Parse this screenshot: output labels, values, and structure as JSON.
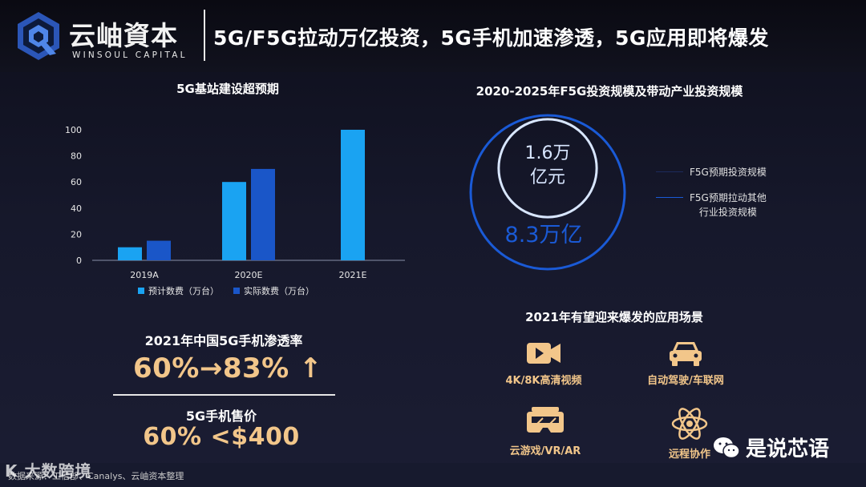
{
  "header": {
    "logo_cn": "云岫資本",
    "logo_en": "WINSOUL CAPITAL",
    "title": "5G/F5G拉动万亿投资，5G手机加速渗透，5G应用即将爆发"
  },
  "left_chart_title": "5G基站建设超预期",
  "chart_data": [
    {
      "type": "bar",
      "title": "5G基站建设超预期",
      "categories": [
        "2019A",
        "2020E",
        "2021E"
      ],
      "series": [
        {
          "name": "预计数费（万台）",
          "values": [
            10,
            60,
            100
          ],
          "color": "#1aa3f2"
        },
        {
          "name": "实际数费（万台）",
          "values": [
            15,
            70,
            null
          ],
          "color": "#1a56c8"
        }
      ],
      "yticks": [
        0,
        20,
        40,
        60,
        80,
        100
      ],
      "ylim": [
        0,
        100
      ],
      "legend": "bottom"
    },
    {
      "type": "pie",
      "title": "2020-2025年F5G投资规模及带动产业投资规模",
      "series": [
        {
          "name": "F5G预期投资规模",
          "value": 1.6,
          "label_lines": [
            "1.6万",
            "亿元"
          ],
          "color": "#d8e6ff"
        },
        {
          "name": "F5G预期拉动其他行业投资规模",
          "value": 8.3,
          "label_lines": [
            "8.3万亿"
          ],
          "color": "#1a5ad6"
        }
      ],
      "legend": "right"
    }
  ],
  "right_chart_title": "2020-2025年F5G投资规模及带动产业投资规模",
  "ring_legend": [
    {
      "lines": [
        "F5G预期投资规模"
      ],
      "color": "#1c2a5c"
    },
    {
      "lines": [
        "F5G预期拉动其他",
        "行业投资规模"
      ],
      "color": "#1a5ad6"
    }
  ],
  "stats": {
    "penetration_title": "2021年中国5G手机渗透率",
    "penetration_value": "60%→83%",
    "penetration_arrow": "↑",
    "price_title": "5G手机售价",
    "price_value": "60% <$400"
  },
  "apps": {
    "title": "2021年有望迎来爆发的应用场景",
    "items": [
      {
        "label": "4K/8K高清视频",
        "icon": "video-camera-icon"
      },
      {
        "label": "自动驾驶/车联网",
        "icon": "car-icon"
      },
      {
        "label": "云游戏/VR/AR",
        "icon": "vr-headset-icon"
      },
      {
        "label": "远程协作",
        "icon": "atom-icon"
      }
    ],
    "icon_color": "#f2c68a"
  },
  "footer": {
    "source": "数据来源：工信部、Canalys、云岫资本整理"
  },
  "watermarks": {
    "left": "K 大数跨境",
    "right": "是说芯语"
  }
}
